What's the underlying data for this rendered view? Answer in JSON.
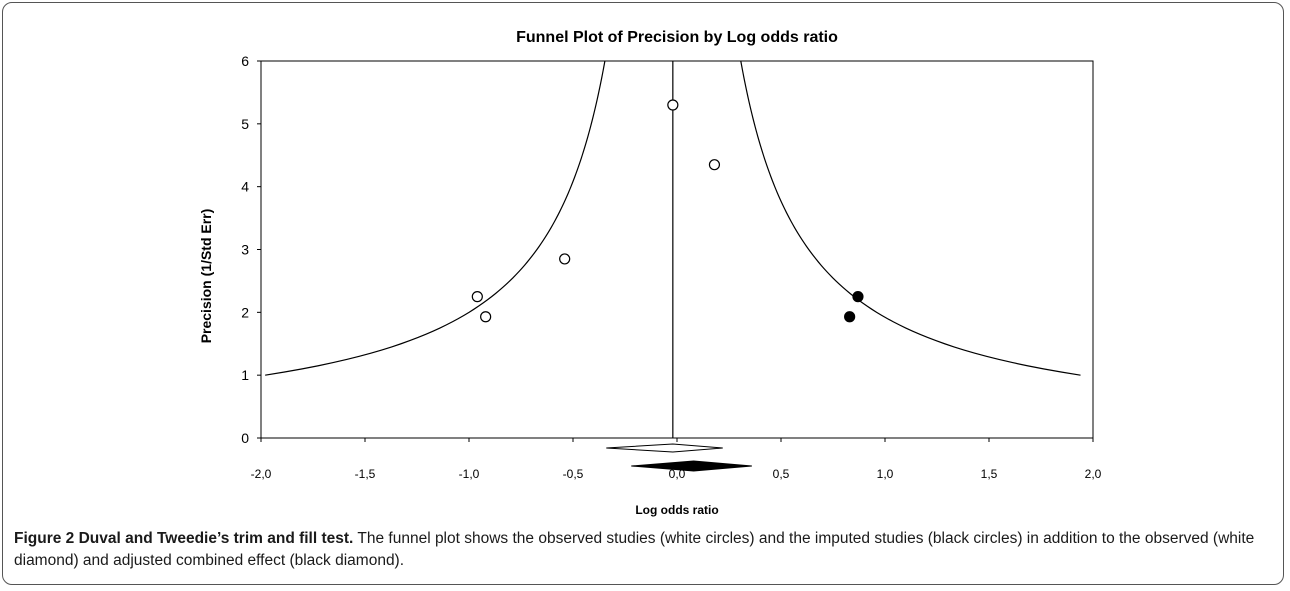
{
  "chart_data": {
    "type": "scatter",
    "title": "Funnel Plot of Precision by Log odds ratio",
    "xlabel": "Log odds ratio",
    "ylabel": "Precision (1/Std Err)",
    "xlim": [
      -2.0,
      2.0
    ],
    "ylim": [
      0,
      6
    ],
    "x_ticks": [
      "-2,0",
      "-1,5",
      "-1,0",
      "-0,5",
      "0,0",
      "0,5",
      "1,0",
      "1,5",
      "2,0"
    ],
    "y_ticks": [
      "0",
      "1",
      "2",
      "3",
      "4",
      "5",
      "6"
    ],
    "center_line_x": -0.02,
    "grid": false,
    "series": [
      {
        "name": "Observed studies",
        "marker": "open-circle",
        "points": [
          {
            "x": -0.02,
            "y": 5.3
          },
          {
            "x": 0.18,
            "y": 4.35
          },
          {
            "x": -0.54,
            "y": 2.85
          },
          {
            "x": -0.96,
            "y": 2.25
          },
          {
            "x": -0.92,
            "y": 1.93
          }
        ]
      },
      {
        "name": "Imputed studies",
        "marker": "filled-circle",
        "points": [
          {
            "x": 0.87,
            "y": 2.25
          },
          {
            "x": 0.83,
            "y": 1.93
          }
        ]
      }
    ],
    "combined_effects": [
      {
        "name": "Observed combined effect",
        "style": "white-diamond",
        "center": -0.02,
        "lower": -0.34,
        "upper": 0.22
      },
      {
        "name": "Adjusted combined effect",
        "style": "black-diamond",
        "center": 0.08,
        "lower": -0.22,
        "upper": 0.36
      }
    ]
  },
  "caption": {
    "label": "Figure 2 Duval and Tweedie’s trim and fill test.",
    "text": " The funnel plot shows the observed studies (white circles) and the imputed studies (black circles) in addition to the observed (white diamond) and adjusted combined effect (black diamond)."
  }
}
